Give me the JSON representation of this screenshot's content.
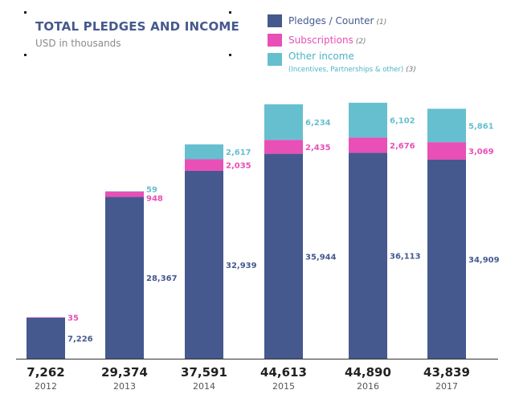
{
  "title": "TOTAL PLEDGES AND INCOME",
  "subtitle": "USD in thousands",
  "legend": {
    "pledges": {
      "label": "Pledges / Counter",
      "note": "(1)"
    },
    "subscriptions": {
      "label": "Subscriptions",
      "note": "(2)"
    },
    "other": {
      "label": "Other income",
      "sub": "(Incentives, Partnerships & other)",
      "note": "(3)"
    }
  },
  "colors": {
    "pledges": "#46598e",
    "subscriptions": "#e84fb7",
    "other": "#66bfcf",
    "total": "#222222",
    "year": "#555555",
    "axis": "#333333"
  },
  "chart_data": {
    "type": "bar",
    "stacked": true,
    "title": "TOTAL PLEDGES AND INCOME",
    "subtitle": "USD in thousands",
    "categories": [
      "2012",
      "2013",
      "2014",
      "2015",
      "2016",
      "2017"
    ],
    "series": [
      {
        "name": "Pledges / Counter",
        "values": [
          7226,
          28367,
          32939,
          35944,
          36113,
          34909
        ]
      },
      {
        "name": "Subscriptions",
        "values": [
          35,
          948,
          2035,
          2435,
          2676,
          3069
        ]
      },
      {
        "name": "Other income",
        "values": [
          null,
          59,
          2617,
          6234,
          6102,
          5861
        ]
      }
    ],
    "value_labels": {
      "pledges": [
        "7,226",
        "28,367",
        "32,939",
        "35,944",
        "36,113",
        "34,909"
      ],
      "subscriptions": [
        "35",
        "948",
        "2,035",
        "2,435",
        "2,676",
        "3,069"
      ],
      "other": [
        "",
        "59",
        "2,617",
        "6,234",
        "6,102",
        "5,861"
      ]
    },
    "totals": [
      "7,262",
      "29,374",
      "37,591",
      "44,613",
      "44,890",
      "43,839"
    ],
    "ylim": [
      0,
      44890
    ],
    "grid": false,
    "legend_position": "top-right"
  }
}
